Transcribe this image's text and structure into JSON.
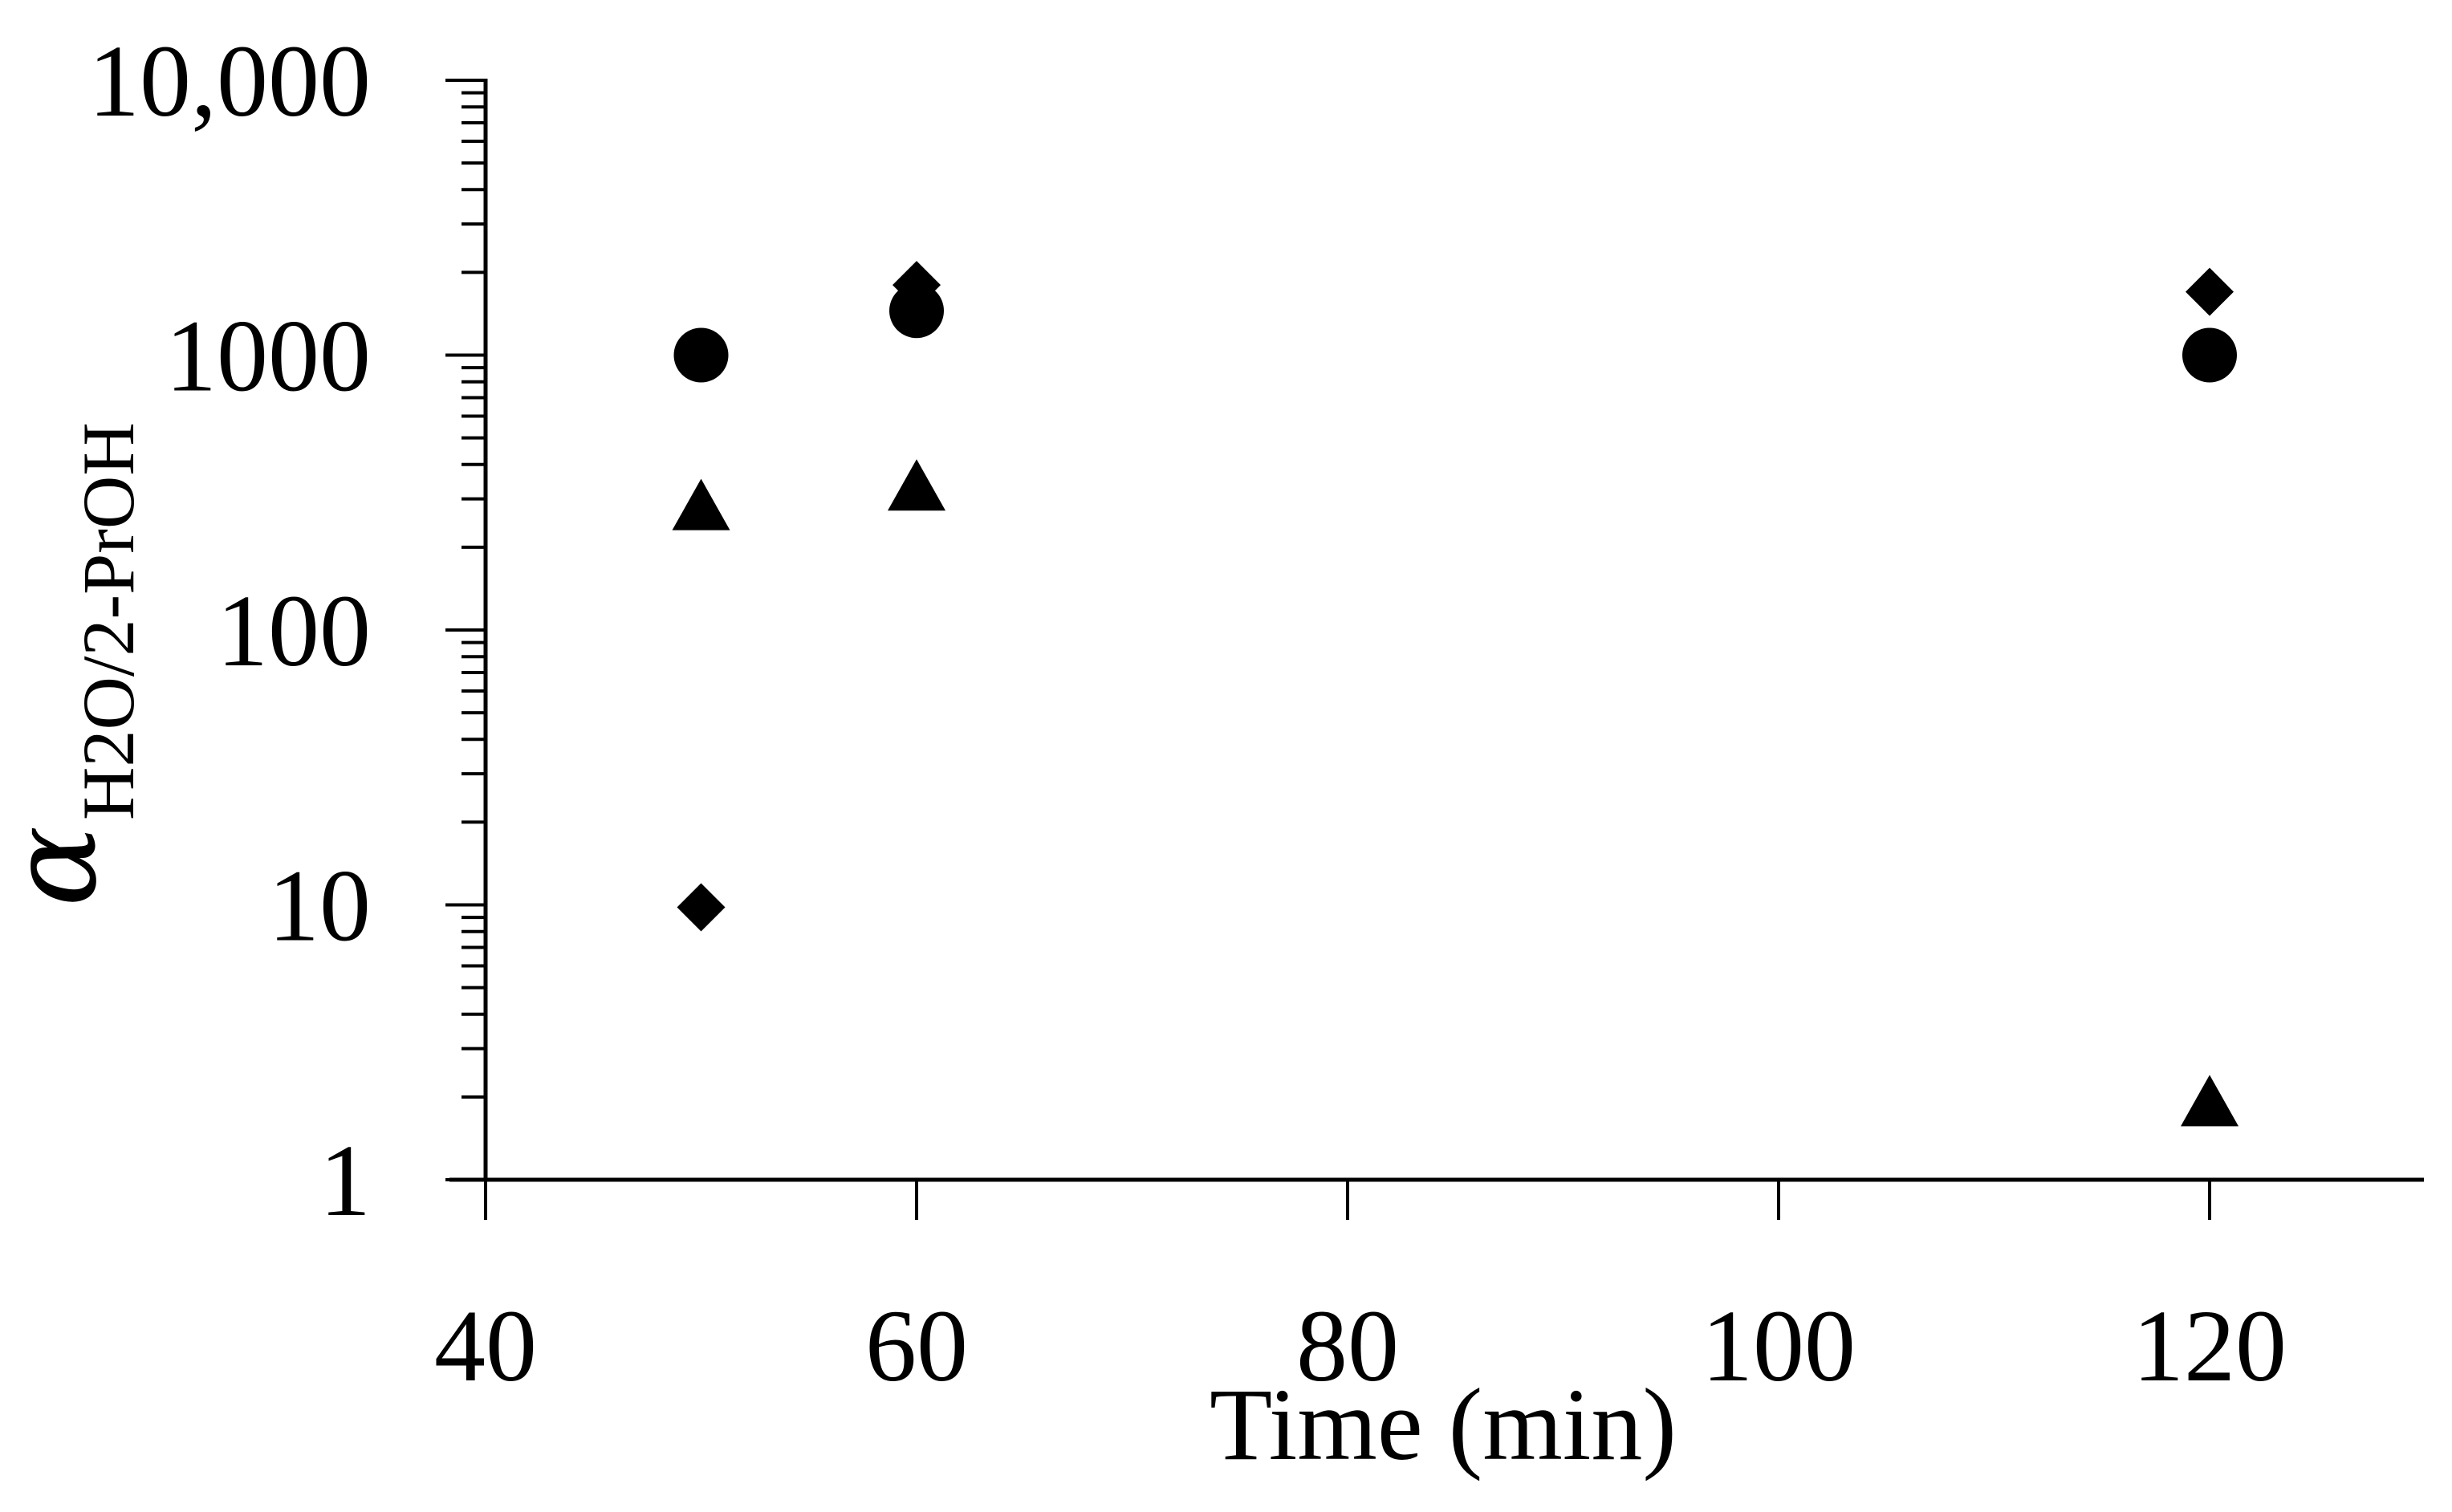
{
  "chart_data": {
    "type": "scatter",
    "title": "",
    "xlabel": "Time (min)",
    "ylabel": {
      "symbol": "α",
      "subscript": "H2O/2-PrOH"
    },
    "xlim": [
      40,
      130
    ],
    "ylim": [
      1,
      10000
    ],
    "yscale": "log",
    "x_ticks": [
      40,
      60,
      80,
      100,
      120
    ],
    "x_tick_labels": [
      "40",
      "60",
      "80",
      "100",
      "120"
    ],
    "y_ticks": [
      1,
      10,
      100,
      1000,
      10000
    ],
    "y_tick_labels": [
      "1",
      "10",
      "100",
      "1000",
      "10,000"
    ],
    "grid": false,
    "legend": "none",
    "color": "#000000",
    "series": [
      {
        "marker": "diamond",
        "points": [
          [
            50,
            9.8
          ],
          [
            60,
            1800
          ],
          [
            120,
            1700
          ]
        ]
      },
      {
        "marker": "circle",
        "points": [
          [
            50,
            1000
          ],
          [
            60,
            1450
          ],
          [
            120,
            1000
          ]
        ]
      },
      {
        "marker": "triangle",
        "points": [
          [
            50,
            280
          ],
          [
            60,
            330
          ],
          [
            120,
            1.9
          ]
        ]
      }
    ]
  }
}
